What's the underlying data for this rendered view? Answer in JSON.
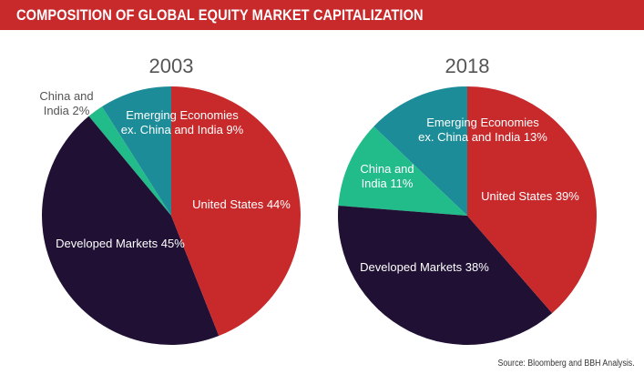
{
  "header": {
    "title": "COMPOSITION OF GLOBAL EQUITY MARKET CAPITALIZATION"
  },
  "source": "Source: Bloomberg and BBH Analysis.",
  "chart_data": [
    {
      "type": "pie",
      "title": "2003",
      "slices": [
        {
          "name": "United States",
          "value": 44,
          "color": "#c8292b",
          "label": [
            "United States 44%"
          ]
        },
        {
          "name": "Developed Markets",
          "value": 45,
          "color": "#1f1034",
          "label": [
            "Developed Markets 45%"
          ]
        },
        {
          "name": "China and India",
          "value": 2,
          "color": "#22bb8a",
          "label": [
            "China and",
            "India 2%"
          ]
        },
        {
          "name": "Emerging Economies ex. China and India",
          "value": 9,
          "color": "#1b8c98",
          "label": [
            "Emerging Economies",
            "ex. China and India 9%"
          ]
        }
      ]
    },
    {
      "type": "pie",
      "title": "2018",
      "slices": [
        {
          "name": "United States",
          "value": 39,
          "color": "#c8292b",
          "label": [
            "United States 39%"
          ]
        },
        {
          "name": "Developed Markets",
          "value": 38,
          "color": "#1f1034",
          "label": [
            "Developed Markets 38%"
          ]
        },
        {
          "name": "China and India",
          "value": 11,
          "color": "#22bb8a",
          "label": [
            "China and",
            "India 11%"
          ]
        },
        {
          "name": "Emerging Economies ex. China and India",
          "value": 13,
          "color": "#1b8c98",
          "label": [
            "Emerging Economies",
            "ex. China and India 13%"
          ]
        }
      ]
    }
  ]
}
